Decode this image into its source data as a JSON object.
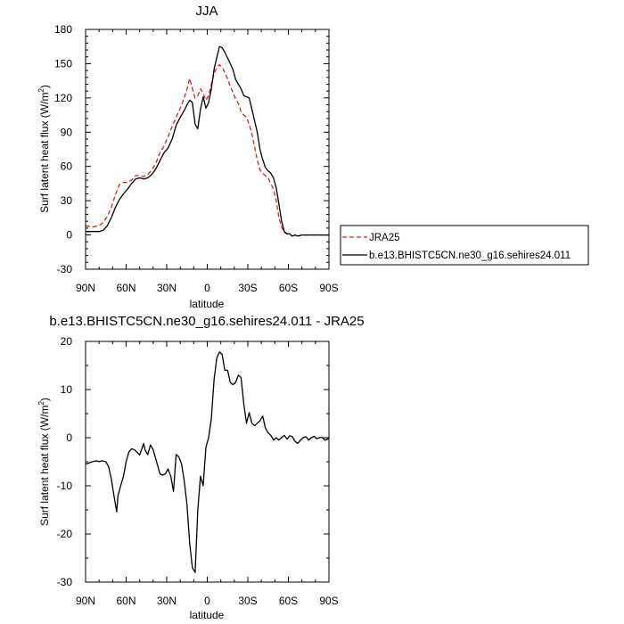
{
  "chart_data": [
    {
      "type": "line",
      "title": "JJA",
      "xlabel": "latitude",
      "ylabel": "Surf latent heat flux (W/m",
      "ylabel_sup": "2",
      "ylabel_end": ")",
      "xlim": [
        90,
        -90
      ],
      "ylim": [
        -30,
        180
      ],
      "xticks": [
        {
          "value": 90,
          "label": "90N"
        },
        {
          "value": 60,
          "label": "60N"
        },
        {
          "value": 30,
          "label": "30N"
        },
        {
          "value": 0,
          "label": "0"
        },
        {
          "value": -30,
          "label": "30S"
        },
        {
          "value": -60,
          "label": "60S"
        },
        {
          "value": -90,
          "label": "90S"
        }
      ],
      "yticks": [
        {
          "value": -30,
          "label": "-30"
        },
        {
          "value": 0,
          "label": "0"
        },
        {
          "value": 30,
          "label": "30"
        },
        {
          "value": 60,
          "label": "60"
        },
        {
          "value": 90,
          "label": "90"
        },
        {
          "value": 120,
          "label": "120"
        },
        {
          "value": 150,
          "label": "150"
        },
        {
          "value": 180,
          "label": "180"
        }
      ],
      "legend": {
        "placement": "right"
      },
      "series": [
        {
          "name": "JRA25",
          "color": "#e31a1c",
          "dash": "dashed",
          "x": [
            90,
            85,
            80,
            77,
            74,
            71,
            68,
            65,
            62,
            59,
            56,
            53,
            50,
            47,
            44,
            41,
            38,
            35,
            32,
            29,
            26,
            23,
            20,
            17,
            15,
            13,
            11,
            9,
            7,
            5,
            3,
            1,
            -1,
            -3,
            -5,
            -7,
            -9,
            -11,
            -13,
            -15,
            -17,
            -19,
            -21,
            -23,
            -25,
            -27,
            -29,
            -31,
            -33,
            -35,
            -37,
            -39,
            -41,
            -43,
            -45,
            -47,
            -49,
            -51,
            -53,
            -55,
            -57,
            -59,
            -61,
            -63,
            -65,
            -67,
            -70,
            -73,
            -76,
            -79,
            -82,
            -85,
            -88,
            -90
          ],
          "values": [
            8,
            7,
            8,
            11,
            16,
            24,
            35,
            44,
            46,
            46,
            48,
            52,
            52,
            51,
            53,
            57,
            63,
            72,
            78,
            86,
            95,
            103,
            111,
            120,
            128,
            137,
            128,
            120,
            122,
            128,
            124,
            118,
            122,
            132,
            141,
            147,
            149,
            147,
            142,
            137,
            130,
            125,
            119,
            115,
            108,
            105,
            103,
            97,
            88,
            77,
            66,
            57,
            54,
            52,
            50,
            45,
            40,
            30,
            15,
            7,
            2,
            1,
            0,
            -1,
            0,
            -1,
            0,
            0,
            0,
            0,
            0,
            0,
            0,
            0
          ]
        },
        {
          "name": "b.e13.BHISTC5CN.ne30_g16.sehires24.011",
          "color": "#000000",
          "dash": "solid",
          "x": [
            90,
            85,
            80,
            77,
            74,
            71,
            68,
            65,
            62,
            59,
            56,
            53,
            50,
            47,
            44,
            41,
            38,
            35,
            32,
            29,
            26,
            23,
            20,
            17,
            15,
            13,
            11,
            9,
            7,
            5,
            3,
            1,
            -1,
            -3,
            -5,
            -7,
            -9,
            -11,
            -13,
            -15,
            -17,
            -19,
            -21,
            -23,
            -25,
            -27,
            -29,
            -31,
            -33,
            -35,
            -37,
            -39,
            -41,
            -43,
            -45,
            -47,
            -49,
            -51,
            -53,
            -55,
            -57,
            -59,
            -61,
            -63,
            -65,
            -67,
            -70,
            -73,
            -76,
            -79,
            -82,
            -85,
            -88,
            -90
          ],
          "values": [
            3,
            3,
            3,
            4,
            8,
            15,
            24,
            31,
            36,
            40,
            45,
            49,
            50,
            49,
            50,
            53,
            58,
            65,
            72,
            76,
            84,
            96,
            103,
            109,
            114,
            118,
            116,
            97,
            93,
            110,
            121,
            111,
            116,
            128,
            145,
            155,
            165,
            164,
            160,
            155,
            150,
            145,
            136,
            132,
            128,
            122,
            121,
            120,
            110,
            100,
            90,
            75,
            66,
            59,
            56,
            54,
            50,
            41,
            27,
            12,
            3,
            1,
            1,
            -1,
            0,
            -1,
            0,
            0,
            0,
            0,
            0,
            0,
            0,
            0
          ]
        }
      ]
    },
    {
      "type": "line",
      "title": "b.e13.BHISTC5CN.ne30_g16.sehires24.011 - JRA25",
      "xlabel": "latitude",
      "ylabel": "Surf latent heat flux (W/m",
      "ylabel_sup": "2",
      "ylabel_end": ")",
      "xlim": [
        90,
        -90
      ],
      "ylim": [
        -30,
        20
      ],
      "xticks": [
        {
          "value": 90,
          "label": "90N"
        },
        {
          "value": 60,
          "label": "60N"
        },
        {
          "value": 30,
          "label": "30N"
        },
        {
          "value": 0,
          "label": "0"
        },
        {
          "value": -30,
          "label": "30S"
        },
        {
          "value": -60,
          "label": "60S"
        },
        {
          "value": -90,
          "label": "90S"
        }
      ],
      "yticks": [
        {
          "value": -30,
          "label": "-30"
        },
        {
          "value": -20,
          "label": "-20"
        },
        {
          "value": -10,
          "label": "-10"
        },
        {
          "value": 0,
          "label": "0"
        },
        {
          "value": 10,
          "label": "10"
        },
        {
          "value": 20,
          "label": "20"
        }
      ],
      "series": [
        {
          "color": "#000000",
          "dash": "solid",
          "x": [
            90,
            85,
            82,
            80,
            78,
            75,
            73,
            71,
            69,
            67,
            66,
            64,
            62,
            60,
            58,
            56,
            54,
            52,
            50,
            49,
            47,
            46,
            44,
            42,
            40,
            37,
            35,
            33,
            31,
            29,
            27,
            25,
            23,
            21,
            19,
            17,
            15,
            13,
            11,
            9,
            7,
            5,
            3,
            1,
            -1,
            -3,
            -5,
            -7,
            -9,
            -11,
            -13,
            -15,
            -17,
            -19,
            -21,
            -23,
            -25,
            -27,
            -29,
            -31,
            -33,
            -35,
            -37,
            -39,
            -41,
            -43,
            -45,
            -47,
            -49,
            -51,
            -53,
            -55,
            -57,
            -59,
            -61,
            -63,
            -65,
            -67,
            -69,
            -71,
            -73,
            -75,
            -77,
            -79,
            -81,
            -83,
            -85,
            -87,
            -89,
            -90
          ],
          "values": [
            -5.5,
            -5,
            -4.8,
            -5,
            -4.8,
            -5,
            -6,
            -8.5,
            -12,
            -15.4,
            -12,
            -10,
            -8,
            -5,
            -3,
            -2.3,
            -2.5,
            -3,
            -3.6,
            -2.8,
            -1.2,
            -2.5,
            -3.5,
            -1.5,
            -2.5,
            -5.5,
            -7.5,
            -7.8,
            -7.5,
            -6.5,
            -8,
            -11.2,
            -3.5,
            -4,
            -5.5,
            -9,
            -14,
            -22,
            -27,
            -28,
            -15,
            -8,
            -10,
            -2,
            0,
            4,
            12,
            16.5,
            17.8,
            17.3,
            14,
            14,
            11.5,
            11,
            11.5,
            13,
            12.5,
            7,
            3,
            5.2,
            3,
            2.5,
            3,
            3.5,
            4.5,
            2,
            1,
            0.5,
            -0.5,
            0,
            -0.5,
            0,
            0.5,
            -0.3,
            0.4,
            0.2,
            -0.8,
            -1.2,
            -0.5,
            0,
            0.2,
            -0.5,
            0,
            0.3,
            -0.2,
            0,
            0.1,
            -0.5,
            -0.3,
            0
          ]
        }
      ]
    }
  ]
}
